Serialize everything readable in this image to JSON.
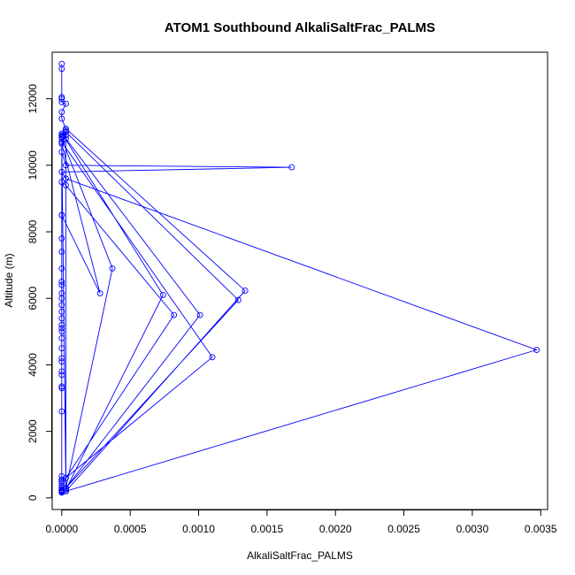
{
  "chart_data": {
    "type": "line",
    "title": "ATOM1 Southbound AlkaliSaltFrac_PALMS",
    "xlabel": "AlkaliSaltFrac_PALMS",
    "ylabel": "Altitude (m)",
    "xlim": [
      -7e-05,
      0.00355
    ],
    "ylim": [
      -350,
      13400
    ],
    "xticks": [
      0,
      0.0005,
      0.001,
      0.0015,
      0.002,
      0.0025,
      0.003,
      0.0035
    ],
    "xtick_labels": [
      "0.0000",
      "0.0005",
      "0.0010",
      "0.0015",
      "0.0020",
      "0.0025",
      "0.0030",
      "0.0035"
    ],
    "yticks": [
      0,
      2000,
      4000,
      6000,
      8000,
      10000,
      12000
    ],
    "ytick_labels": [
      "0",
      "2000",
      "4000",
      "6000",
      "8000",
      "10000",
      "12000"
    ],
    "grid": false,
    "series_color": "#0000ff",
    "series": [
      {
        "x": [
          0,
          0,
          0,
          0,
          0,
          3e-05,
          0,
          0,
          3e-05,
          0.00134,
          3e-05,
          3e-05,
          3e-05,
          0,
          0,
          3e-05,
          0.00168,
          0,
          3e-05,
          0.00347,
          3e-05,
          3e-05,
          0,
          1e-05,
          0.00074,
          3e-05,
          3e-05,
          0.00101,
          3e-05,
          3e-05,
          3e-05,
          0,
          0,
          0.00037,
          3e-05,
          3e-05,
          0.00129,
          3e-05,
          0,
          0.0011,
          0,
          0,
          0,
          3e-05,
          0.00082,
          3e-05,
          0,
          0.00028,
          0,
          0,
          0,
          0,
          0,
          0,
          0,
          0,
          0,
          0,
          0,
          0,
          0,
          0,
          0,
          0,
          0,
          0,
          0,
          0,
          0,
          0,
          0,
          0,
          0,
          0,
          0,
          0,
          0,
          0,
          0,
          0,
          0,
          0,
          0,
          0,
          0,
          0
        ],
        "y": [
          13050,
          12900,
          12050,
          12000,
          11900,
          11850,
          11600,
          11400,
          11100,
          6230,
          200,
          11050,
          11000,
          10700,
          10400,
          10000,
          9940,
          9800,
          9600,
          4450,
          200,
          11000,
          10950,
          10900,
          6100,
          250,
          10800,
          5500,
          300,
          10900,
          11000,
          10900,
          10800,
          6900,
          300,
          11000,
          5950,
          300,
          10700,
          4230,
          500,
          10850,
          9500,
          9400,
          5500,
          600,
          10650,
          6150,
          8500,
          8500,
          7800,
          7400,
          6900,
          6500,
          6400,
          6150,
          6000,
          5800,
          5600,
          5400,
          5200,
          5100,
          5000,
          4800,
          4500,
          4200,
          4100,
          3800,
          3700,
          3350,
          3300,
          2600,
          650,
          550,
          500,
          450,
          350,
          300,
          250,
          240,
          230,
          220,
          210,
          200,
          180,
          160
        ]
      }
    ]
  }
}
